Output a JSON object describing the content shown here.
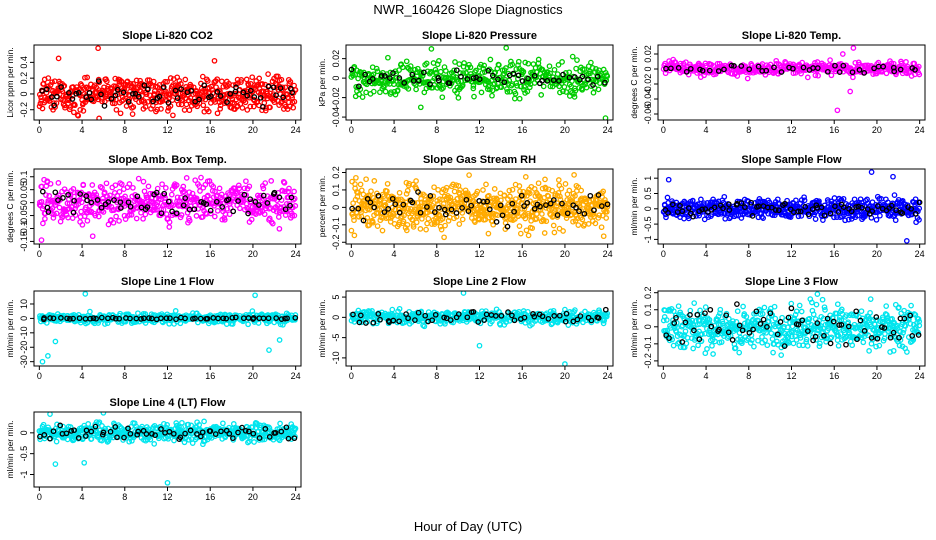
{
  "figure": {
    "title": "NWR_160426  Slope Diagnostics",
    "xlabel": "Hour of Day (UTC)"
  },
  "chart_data": [
    {
      "type": "scatter",
      "title": "Slope Li-820 CO2",
      "ylabel": "Licor ppm per min.",
      "color": "#ff0000",
      "x_ticks": [
        0,
        4,
        8,
        12,
        16,
        20,
        24
      ],
      "y_ticks": [
        -0.2,
        0.0,
        0.2,
        0.4
      ],
      "ylim": [
        -0.33,
        0.62
      ],
      "xlim": [
        -0.5,
        24.5
      ],
      "series": [
        {
          "color": "#ff0000",
          "n": 560,
          "y_center": 0.0,
          "y_spread": 0.16,
          "outliers": [
            [
              1.8,
              0.45
            ],
            [
              5.5,
              0.58
            ],
            [
              16.4,
              0.42
            ],
            [
              5.6,
              -0.31
            ]
          ]
        },
        {
          "color": "#000000",
          "n": 60,
          "y_center": 0.0,
          "y_spread": 0.1
        }
      ]
    },
    {
      "type": "scatter",
      "title": "Slope Li-820 Pressure",
      "ylabel": "kPa per min.",
      "color": "#00cc00",
      "x_ticks": [
        0,
        4,
        8,
        12,
        16,
        20,
        24
      ],
      "y_ticks": [
        -0.04,
        -0.02,
        0.0,
        0.02
      ],
      "ylim": [
        -0.043,
        0.034
      ],
      "xlim": [
        -0.5,
        24.5
      ],
      "series": [
        {
          "color": "#00cc00",
          "n": 460,
          "y_center": 0.0,
          "y_spread": 0.012,
          "outliers": [
            [
              6.5,
              -0.03
            ],
            [
              7.5,
              0.03
            ],
            [
              14.5,
              0.031
            ],
            [
              23.8,
              -0.041
            ]
          ]
        },
        {
          "color": "#000000",
          "n": 50,
          "y_center": 0.0,
          "y_spread": 0.006
        }
      ]
    },
    {
      "type": "scatter",
      "title": "Slope Li-820 Temp.",
      "ylabel": "degrees C per min.",
      "color": "#ff00ff",
      "x_ticks": [
        0,
        4,
        8,
        12,
        16,
        20,
        24
      ],
      "y_ticks": [
        -0.06,
        -0.04,
        -0.02,
        0.0,
        0.02
      ],
      "ylim": [
        -0.068,
        0.032
      ],
      "xlim": [
        -0.5,
        24.5
      ],
      "series": [
        {
          "color": "#ff00ff",
          "n": 420,
          "y_center": 0.0,
          "y_spread": 0.006,
          "outliers": [
            [
              16.3,
              -0.055
            ],
            [
              17.5,
              -0.03
            ],
            [
              17.8,
              0.028
            ],
            [
              16.8,
              0.02
            ]
          ]
        },
        {
          "color": "#000000",
          "n": 40,
          "y_center": 0.0,
          "y_spread": 0.004
        }
      ]
    },
    {
      "type": "scatter",
      "title": "Slope Amb. Box Temp.",
      "ylabel": "degrees C per min.",
      "color": "#ff00ff",
      "x_ticks": [
        0,
        4,
        8,
        12,
        16,
        20,
        24
      ],
      "y_ticks": [
        -0.15,
        -0.1,
        -0.05,
        0.0,
        0.05,
        0.1
      ],
      "ylim": [
        -0.16,
        0.13
      ],
      "xlim": [
        -0.5,
        24.5
      ],
      "series": [
        {
          "color": "#ff00ff",
          "n": 520,
          "y_center": 0.0,
          "y_spread": 0.055,
          "outliers": [
            [
              0.2,
              -0.145
            ],
            [
              5.0,
              -0.13
            ]
          ]
        },
        {
          "color": "#000000",
          "n": 60,
          "y_center": 0.0,
          "y_spread": 0.035
        }
      ]
    },
    {
      "type": "scatter",
      "title": "Slope Gas Stream RH",
      "ylabel": "percent per min.",
      "color": "#ffaa00",
      "x_ticks": [
        0,
        4,
        8,
        12,
        16,
        20,
        24
      ],
      "y_ticks": [
        -0.2,
        -0.1,
        0.0,
        0.1,
        0.2
      ],
      "ylim": [
        -0.21,
        0.22
      ],
      "xlim": [
        -0.5,
        24.5
      ],
      "series": [
        {
          "color": "#ffaa00",
          "n": 680,
          "y_center": 0.0,
          "y_spread": 0.09
        },
        {
          "color": "#000000",
          "n": 60,
          "y_center": 0.0,
          "y_spread": 0.06
        }
      ]
    },
    {
      "type": "scatter",
      "title": "Slope Sample Flow",
      "ylabel": "ml/min per min.",
      "color": "#0000ff",
      "x_ticks": [
        0,
        4,
        8,
        12,
        16,
        20,
        24
      ],
      "y_ticks": [
        -1.0,
        -0.5,
        0.0,
        0.5,
        1.0
      ],
      "ylim": [
        -1.15,
        1.3
      ],
      "xlim": [
        -0.5,
        24.5
      ],
      "series": [
        {
          "color": "#0000ff",
          "n": 540,
          "y_center": 0.0,
          "y_spread": 0.25,
          "outliers": [
            [
              0.5,
              0.95
            ],
            [
              21.5,
              1.05
            ],
            [
              22.8,
              -1.05
            ],
            [
              19.5,
              1.2
            ]
          ]
        },
        {
          "color": "#000000",
          "n": 70,
          "y_center": 0.0,
          "y_spread": 0.15
        }
      ]
    },
    {
      "type": "scatter",
      "title": "Slope Line 1 Flow",
      "ylabel": "ml/min per min.",
      "color": "#00e5ee",
      "x_ticks": [
        0,
        4,
        8,
        12,
        16,
        20,
        24
      ],
      "y_ticks": [
        -30,
        -20,
        -10,
        0,
        10
      ],
      "ylim": [
        -33,
        19
      ],
      "xlim": [
        -0.5,
        24.5
      ],
      "series": [
        {
          "color": "#00e5ee",
          "n": 420,
          "y_center": 0.0,
          "y_spread": 2.5,
          "outliers": [
            [
              0.3,
              -30
            ],
            [
              0.8,
              -26
            ],
            [
              1.5,
              -16
            ],
            [
              4.3,
              17
            ],
            [
              20.2,
              16
            ],
            [
              21.5,
              -22
            ],
            [
              22.5,
              -15
            ]
          ]
        },
        {
          "color": "#000000",
          "n": 55,
          "y_center": 0.0,
          "y_spread": 0.4
        }
      ]
    },
    {
      "type": "scatter",
      "title": "Slope Line 2 Flow",
      "ylabel": "ml/min per min.",
      "color": "#00e5ee",
      "x_ticks": [
        0,
        4,
        8,
        12,
        16,
        20,
        24
      ],
      "y_ticks": [
        -10,
        -5,
        0,
        5
      ],
      "ylim": [
        -12,
        6.5
      ],
      "xlim": [
        -0.5,
        24.5
      ],
      "series": [
        {
          "color": "#00e5ee",
          "n": 440,
          "y_center": 0.0,
          "y_spread": 1.2,
          "outliers": [
            [
              20.0,
              -11.5
            ],
            [
              12.0,
              -7
            ],
            [
              10.5,
              6
            ]
          ]
        },
        {
          "color": "#000000",
          "n": 55,
          "y_center": 0.0,
          "y_spread": 1.0
        }
      ]
    },
    {
      "type": "scatter",
      "title": "Slope Line 3 Flow",
      "ylabel": "ml/min per min.",
      "color": "#00e5ee",
      "x_ticks": [
        0,
        4,
        8,
        12,
        16,
        20,
        24
      ],
      "y_ticks": [
        -0.2,
        -0.1,
        0.0,
        0.1,
        0.2
      ],
      "ylim": [
        -0.23,
        0.21
      ],
      "xlim": [
        -0.5,
        24.5
      ],
      "series": [
        {
          "color": "#00e5ee",
          "n": 600,
          "y_center": 0.0,
          "y_spread": 0.09
        },
        {
          "color": "#000000",
          "n": 65,
          "y_center": 0.0,
          "y_spread": 0.08
        }
      ]
    },
    {
      "type": "scatter",
      "title": "Slope Line 4 (LT) Flow",
      "ylabel": "ml/min per min.",
      "color": "#00e5ee",
      "x_ticks": [
        0,
        4,
        8,
        12,
        16,
        20,
        24
      ],
      "y_ticks": [
        -1.0,
        -0.5,
        0.0
      ],
      "ylim": [
        -1.3,
        0.5
      ],
      "xlim": [
        -0.5,
        24.5
      ],
      "series": [
        {
          "color": "#00e5ee",
          "n": 520,
          "y_center": 0.0,
          "y_spread": 0.15,
          "outliers": [
            [
              1.0,
              0.45
            ],
            [
              6.0,
              0.48
            ],
            [
              1.5,
              -0.75
            ],
            [
              4.2,
              -0.72
            ],
            [
              12.0,
              -1.2
            ]
          ]
        },
        {
          "color": "#000000",
          "n": 60,
          "y_center": 0.0,
          "y_spread": 0.12
        }
      ]
    }
  ]
}
